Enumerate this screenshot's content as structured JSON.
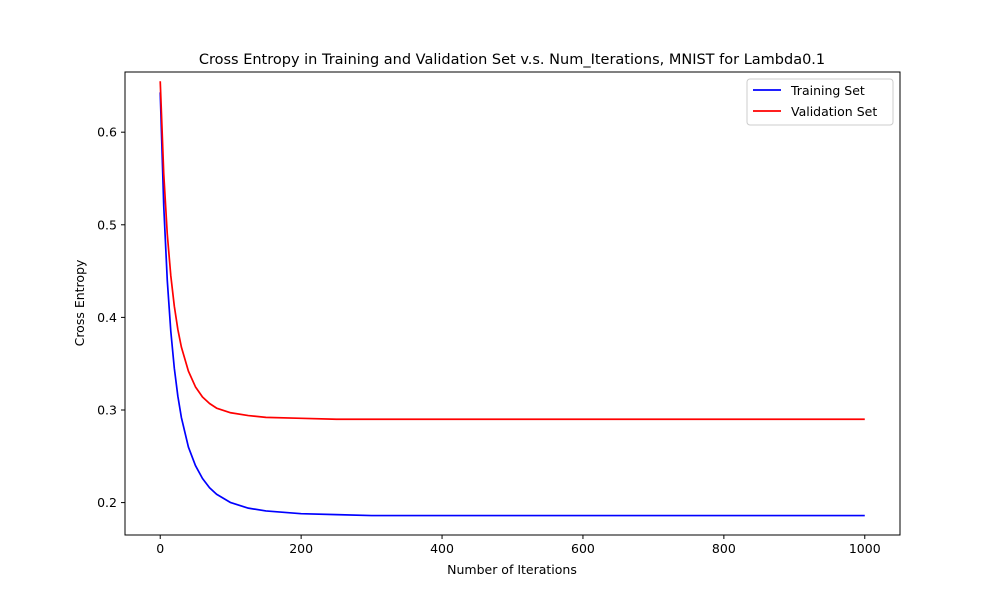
{
  "chart_data": {
    "type": "line",
    "title": "Cross Entropy in Training and Validation Set v.s. Num_Iterations, MNIST for Lambda0.1",
    "xlabel": "Number of Iterations",
    "ylabel": "Cross Entropy",
    "xlim": [
      -50,
      1050
    ],
    "ylim": [
      0.165,
      0.665
    ],
    "xticks": [
      0,
      200,
      400,
      600,
      800,
      1000
    ],
    "yticks": [
      0.2,
      0.3,
      0.4,
      0.5,
      0.6
    ],
    "xtick_labels": [
      "0",
      "200",
      "400",
      "600",
      "800",
      "1000"
    ],
    "ytick_labels": [
      "0.2",
      "0.3",
      "0.4",
      "0.5",
      "0.6"
    ],
    "grid": false,
    "legend_position": "top-right",
    "series": [
      {
        "name": "Training Set",
        "color": "#0000ff",
        "x": [
          0,
          5,
          10,
          15,
          20,
          25,
          30,
          40,
          50,
          60,
          70,
          80,
          100,
          125,
          150,
          200,
          250,
          300,
          400,
          500,
          600,
          700,
          800,
          900,
          1000
        ],
        "y": [
          0.643,
          0.52,
          0.44,
          0.385,
          0.345,
          0.315,
          0.292,
          0.26,
          0.24,
          0.226,
          0.216,
          0.209,
          0.2,
          0.194,
          0.191,
          0.188,
          0.187,
          0.186,
          0.186,
          0.186,
          0.186,
          0.186,
          0.186,
          0.186,
          0.186
        ]
      },
      {
        "name": "Validation Set",
        "color": "#ff0000",
        "x": [
          0,
          5,
          10,
          15,
          20,
          25,
          30,
          40,
          50,
          60,
          70,
          80,
          100,
          125,
          150,
          200,
          250,
          300,
          400,
          500,
          600,
          700,
          800,
          900,
          1000
        ],
        "y": [
          0.655,
          0.555,
          0.49,
          0.445,
          0.412,
          0.387,
          0.368,
          0.342,
          0.325,
          0.314,
          0.307,
          0.302,
          0.297,
          0.294,
          0.292,
          0.291,
          0.29,
          0.29,
          0.29,
          0.29,
          0.29,
          0.29,
          0.29,
          0.29,
          0.29
        ]
      }
    ]
  }
}
